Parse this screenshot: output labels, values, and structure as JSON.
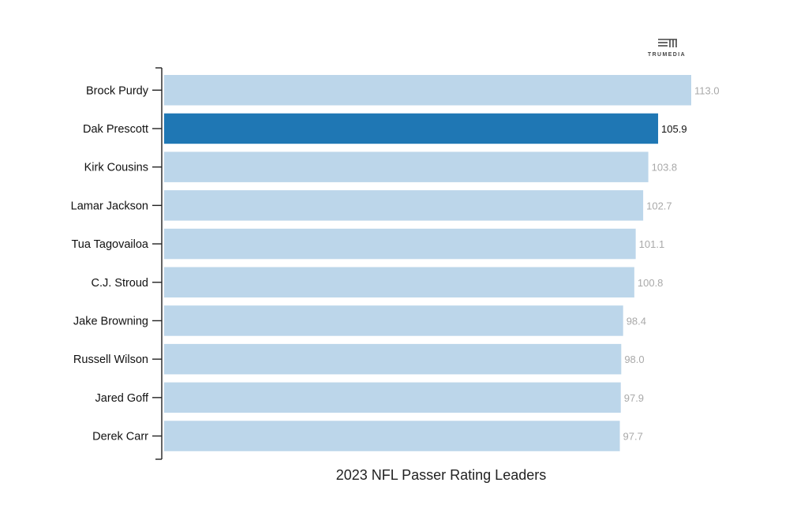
{
  "brand": {
    "logo_text": "TRUMEDIA"
  },
  "colors": {
    "bar": "#bcd6ea",
    "highlight": "#1f77b4",
    "value_label": "#a9a9a9",
    "highlight_label": "#111111",
    "axis": "#222222"
  },
  "chart_data": {
    "type": "bar",
    "orientation": "horizontal",
    "title": "2023 NFL Passer Rating Leaders",
    "xlabel": "",
    "ylabel": "",
    "xlim": [
      0,
      113.0
    ],
    "grid": false,
    "highlight": "Dak Prescott",
    "categories": [
      "Brock Purdy",
      "Dak Prescott",
      "Kirk Cousins",
      "Lamar Jackson",
      "Tua Tagovailoa",
      "C.J. Stroud",
      "Jake Browning",
      "Russell Wilson",
      "Jared Goff",
      "Derek Carr"
    ],
    "values": [
      113.0,
      105.9,
      103.8,
      102.7,
      101.1,
      100.8,
      98.4,
      98.0,
      97.9,
      97.7
    ],
    "value_labels": [
      "113.0",
      "105.9",
      "103.8",
      "102.7",
      "101.1",
      "100.8",
      "98.4",
      "98.0",
      "97.9",
      "97.7"
    ]
  }
}
